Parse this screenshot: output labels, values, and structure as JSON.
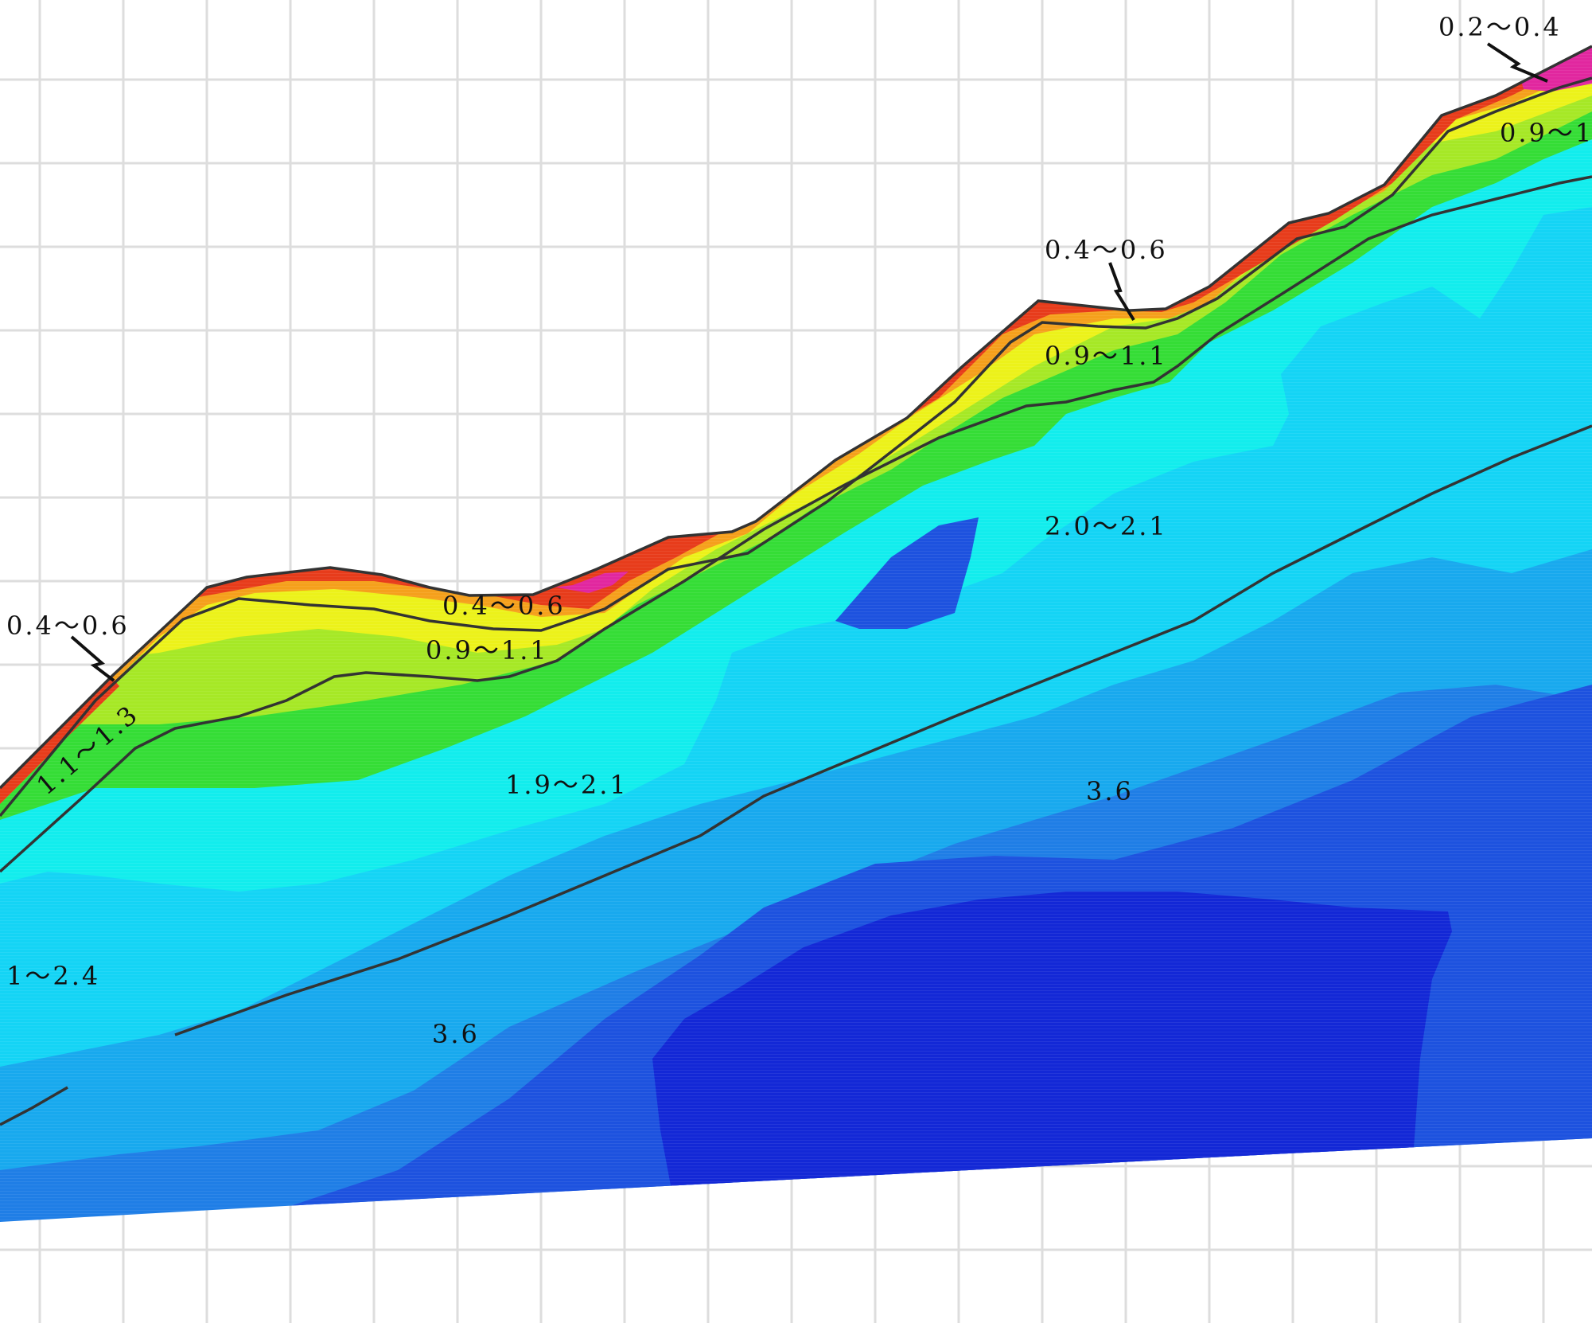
{
  "labels": [
    {
      "id": "label-0.2-0.4-top-right",
      "text": "0.2～0.4"
    },
    {
      "id": "label-0.9-1-top-right",
      "text": "0.9～1"
    },
    {
      "id": "label-0.4-0.6-center",
      "text": "0.4～0.6"
    },
    {
      "id": "label-0.9-1.1-center",
      "text": "0.9～1.1"
    },
    {
      "id": "label-2.0-2.1",
      "text": "2.0～2.1"
    },
    {
      "id": "label-0.4-0.6-left",
      "text": "0.4～0.6"
    },
    {
      "id": "label-0.4-0.6-valley",
      "text": "0.4～0.6"
    },
    {
      "id": "label-0.9-1.1-valley",
      "text": "0.9～1.1"
    },
    {
      "id": "label-1.1-1.3",
      "text": "1.1～1.3"
    },
    {
      "id": "label-1.9-2.1",
      "text": "1.9～2.1"
    },
    {
      "id": "label-3.6-right",
      "text": "3.6"
    },
    {
      "id": "label-1-2.4-left",
      "text": "1～2.4"
    },
    {
      "id": "label-3.6-lower",
      "text": "3.6"
    }
  ],
  "colors": {
    "magenta": "#e1279f",
    "red": "#e73c1b",
    "orange": "#f5a01c",
    "yellow": "#ecf21a",
    "yellow_green": "#a6e826",
    "green": "#35dd36",
    "cyan_light": "#12eded",
    "cyan": "#14d4f5",
    "sky_blue": "#18a9ee",
    "blue_light": "#1f7ee6",
    "blue": "#1d52df",
    "blue_deep": "#1328d6",
    "contour_line": "#333333",
    "grid": "#dddddd"
  }
}
